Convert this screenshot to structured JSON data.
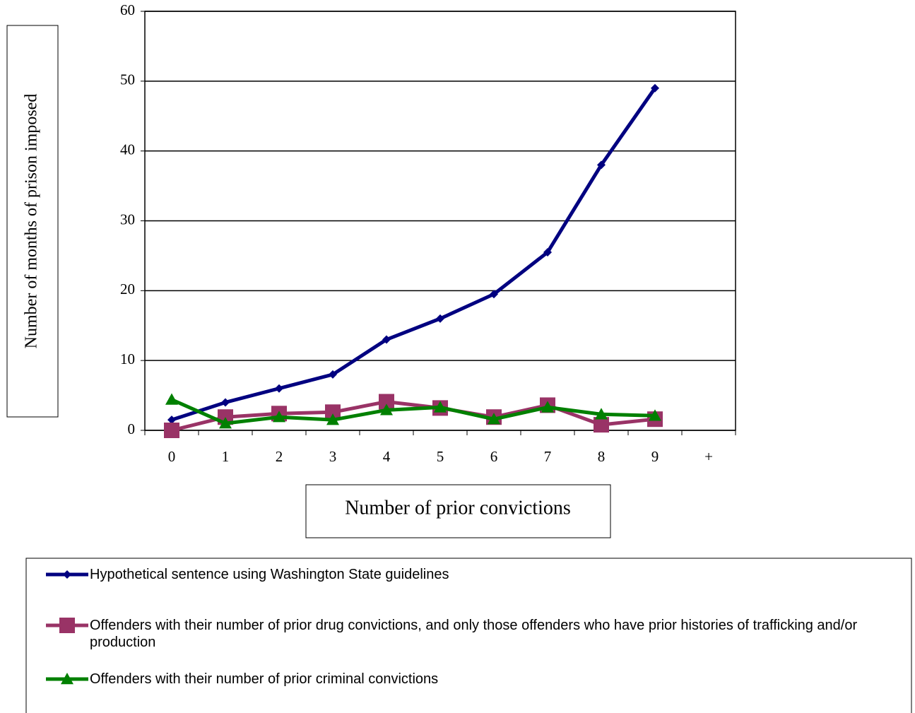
{
  "chart_data": {
    "type": "line",
    "x_label": "Number of prior convictions",
    "y_label": "Number of months of prison imposed",
    "categories": [
      "0",
      "1",
      "2",
      "3",
      "4",
      "5",
      "6",
      "7",
      "8",
      "9",
      "+"
    ],
    "series": [
      {
        "name": "Hypothetical sentence using Washington State guidelines",
        "color": "#000080",
        "marker": "diamond",
        "values": [
          1.5,
          4,
          6,
          8,
          13,
          16,
          19.5,
          25.5,
          38,
          49,
          null
        ]
      },
      {
        "name": "Offenders with their number of prior drug convictions, and only those offenders who have prior histories of trafficking and/or production",
        "color": "#993366",
        "marker": "square",
        "values": [
          0,
          1.9,
          2.4,
          2.6,
          4.1,
          3.2,
          1.9,
          3.6,
          0.8,
          1.6,
          null
        ]
      },
      {
        "name": "Offenders with their number of prior criminal convictions",
        "color": "#008000",
        "marker": "triangle",
        "values": [
          4.4,
          1,
          1.9,
          1.5,
          2.9,
          3.3,
          1.6,
          3.3,
          2.3,
          2.1,
          null
        ]
      }
    ],
    "ylim": [
      0,
      60
    ],
    "yticks": [
      0,
      10,
      20,
      30,
      40,
      50,
      60
    ],
    "grid": true
  }
}
